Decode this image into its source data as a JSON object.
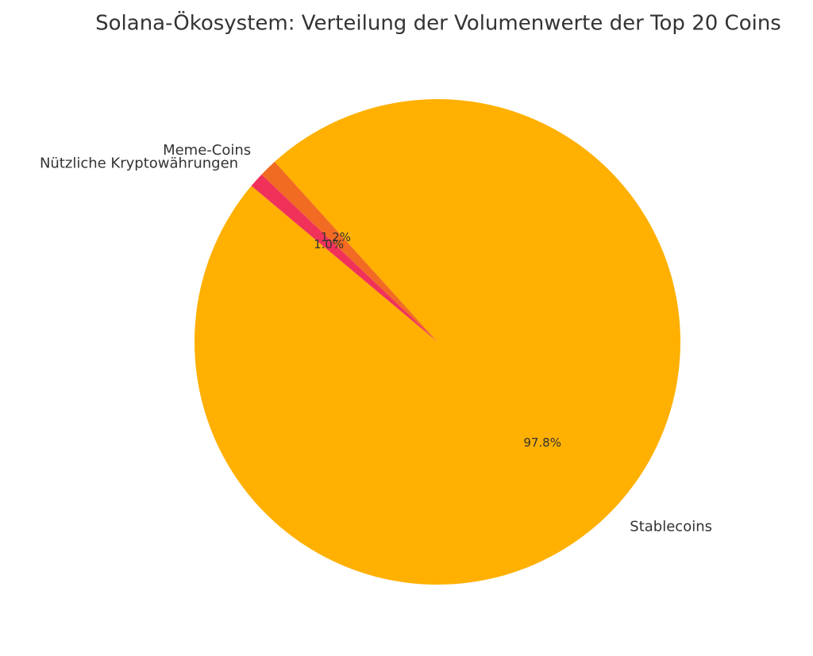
{
  "chart_data": {
    "type": "pie",
    "title": "Solana-Ökosystem: Verteilung der Volumenwerte der Top 20 Coins",
    "categories": [
      "Stablecoins",
      "Meme-Coins",
      "Nützliche Kryptowährungen"
    ],
    "values": [
      97.8,
      1.2,
      1.0
    ],
    "value_labels": [
      "97.8%",
      "1.2%",
      "1.0%"
    ],
    "colors": [
      "#ffb000",
      "#f26b22",
      "#f0325a"
    ]
  }
}
